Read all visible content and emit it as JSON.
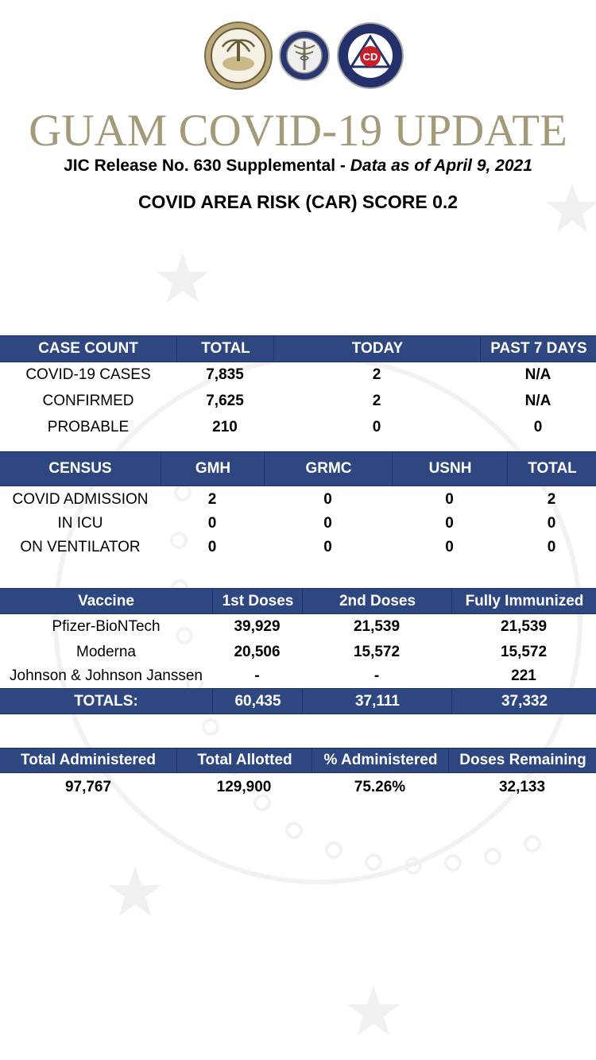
{
  "header": {
    "title": "GUAM COVID-19 UPDATE",
    "release_prefix": "JIC Release No. 630 Supplemental - ",
    "release_date": "Data as of April 9, 2021",
    "car_score": "COVID AREA RISK (CAR) SCORE 0.2"
  },
  "case_count": {
    "columns": [
      "CASE COUNT",
      "TOTAL",
      "TODAY",
      "PAST 7 DAYS"
    ],
    "rows": [
      [
        "COVID-19 CASES",
        "7,835",
        "2",
        "N/A"
      ],
      [
        "CONFIRMED",
        "7,625",
        "2",
        "N/A"
      ],
      [
        "PROBABLE",
        "210",
        "0",
        "0"
      ]
    ]
  },
  "census": {
    "columns": [
      "CENSUS",
      "GMH",
      "GRMC",
      "USNH",
      "TOTAL"
    ],
    "rows": [
      [
        "COVID ADMISSION",
        "2",
        "0",
        "0",
        "2"
      ],
      [
        "IN ICU",
        "0",
        "0",
        "0",
        "0"
      ],
      [
        "ON VENTILATOR",
        "0",
        "0",
        "0",
        "0"
      ]
    ]
  },
  "vaccine": {
    "columns": [
      "Vaccine",
      "1st Doses",
      "2nd Doses",
      "Fully Immunized"
    ],
    "rows": [
      [
        "Pfizer-BioNTech",
        "39,929",
        "21,539",
        "21,539"
      ],
      [
        "Moderna",
        "20,506",
        "15,572",
        "15,572"
      ],
      [
        "Johnson & Johnson Janssen",
        "-",
        "-",
        "221"
      ]
    ],
    "totals": [
      "TOTALS:",
      "60,435",
      "37,111",
      "37,332"
    ]
  },
  "administration": {
    "columns": [
      "Total Administered",
      "Total Allotted",
      "% Administered",
      "Doses Remaining"
    ],
    "values": [
      "97,767",
      "129,900",
      "75.26%",
      "32,133"
    ]
  },
  "logos": {
    "seal1": "GOVERNOR'S SEAL I SLAN GUAHAN",
    "seal2": "PUBLIC HEALTH SOCIAL SERVICES",
    "seal3": "GUAM HOMELAND SECURITY OFFICE OF CIVIL DEFENSE",
    "seal3_mark": "CD"
  },
  "colors": {
    "header_bg": "#2e4780",
    "title_gold": "#a39a7a"
  }
}
